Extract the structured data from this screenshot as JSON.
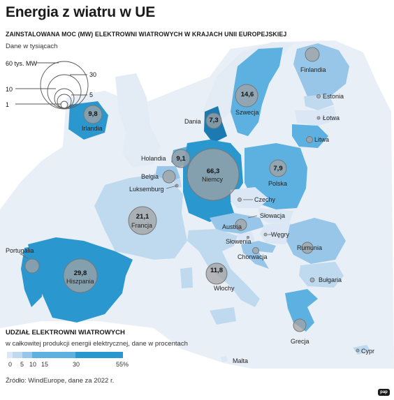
{
  "title": "Energia z wiatru w UE",
  "subtitle": "ZAINSTALOWANA MOC (MW) ELEKTROWNI WIATROWYCH W KRAJACH UNII EUROPEJSKIEJ",
  "unit_note": "Dane w tysiącach",
  "size_legend": {
    "top_label": "60 tys. MW",
    "labels": [
      "30",
      "10",
      "5",
      "1"
    ]
  },
  "countries": [
    {
      "name": "Finlandia",
      "capacity_label": "",
      "capacity_thousand_mw": 5.7,
      "share_pct": 15
    },
    {
      "name": "Estonia",
      "capacity_label": "",
      "capacity_thousand_mw": 0.3,
      "share_pct": 8
    },
    {
      "name": "Łotwa",
      "capacity_label": "",
      "capacity_thousand_mw": 0.1,
      "share_pct": 3
    },
    {
      "name": "Litwa",
      "capacity_label": "",
      "capacity_thousand_mw": 1.3,
      "share_pct": 20
    },
    {
      "name": "Szwecja",
      "capacity_label": "14,6",
      "capacity_thousand_mw": 14.6,
      "share_pct": 20
    },
    {
      "name": "Dania",
      "capacity_label": "7,3",
      "capacity_thousand_mw": 7.3,
      "share_pct": 55
    },
    {
      "name": "Irlandia",
      "capacity_label": "9,8",
      "capacity_thousand_mw": 9.8,
      "share_pct": 34
    },
    {
      "name": "Holandia",
      "capacity_label": "9,1",
      "capacity_thousand_mw": 9.1,
      "share_pct": 18
    },
    {
      "name": "Belgia",
      "capacity_label": "",
      "capacity_thousand_mw": 5.0,
      "share_pct": 12
    },
    {
      "name": "Luksemburg",
      "capacity_label": "",
      "capacity_thousand_mw": 0.2,
      "share_pct": 9
    },
    {
      "name": "Niemcy",
      "capacity_label": "66,3",
      "capacity_thousand_mw": 66.3,
      "share_pct": 26
    },
    {
      "name": "Polska",
      "capacity_label": "7,9",
      "capacity_thousand_mw": 7.9,
      "share_pct": 11
    },
    {
      "name": "Czechy",
      "capacity_label": "",
      "capacity_thousand_mw": 0.3,
      "share_pct": 1
    },
    {
      "name": "Słowacja",
      "capacity_label": "",
      "capacity_thousand_mw": 0.0,
      "share_pct": 0
    },
    {
      "name": "Austria",
      "capacity_label": "",
      "capacity_thousand_mw": 3.6,
      "share_pct": 12
    },
    {
      "name": "Węgry",
      "capacity_label": "",
      "capacity_thousand_mw": 0.3,
      "share_pct": 2
    },
    {
      "name": "Słowenia",
      "capacity_label": "",
      "capacity_thousand_mw": 0.0,
      "share_pct": 0
    },
    {
      "name": "Chorwacja",
      "capacity_label": "",
      "capacity_thousand_mw": 1.0,
      "share_pct": 13
    },
    {
      "name": "Rumunia",
      "capacity_label": "",
      "capacity_thousand_mw": 3.0,
      "share_pct": 12
    },
    {
      "name": "Bułgaria",
      "capacity_label": "",
      "capacity_thousand_mw": 0.7,
      "share_pct": 4
    },
    {
      "name": "Grecja",
      "capacity_label": "",
      "capacity_thousand_mw": 4.7,
      "share_pct": 20
    },
    {
      "name": "Cypr",
      "capacity_label": "",
      "capacity_thousand_mw": 0.2,
      "share_pct": 4
    },
    {
      "name": "Malta",
      "capacity_label": "",
      "capacity_thousand_mw": 0.0,
      "share_pct": 0
    },
    {
      "name": "Włochy",
      "capacity_label": "11,8",
      "capacity_thousand_mw": 11.8,
      "share_pct": 7
    },
    {
      "name": "Francja",
      "capacity_label": "21,1",
      "capacity_thousand_mw": 21.1,
      "share_pct": 8
    },
    {
      "name": "Hiszpania",
      "capacity_label": "29,8",
      "capacity_thousand_mw": 29.8,
      "share_pct": 22
    },
    {
      "name": "Portugalia",
      "capacity_label": "",
      "capacity_thousand_mw": 5.6,
      "share_pct": 26
    }
  ],
  "share_legend": {
    "title": "UDZIAŁ ELEKTROWNI WIATROWYCH",
    "subtitle": "w całkowitej produkcji energii elektrycznej, dane w procentach",
    "ticks": [
      "0",
      "5",
      "10",
      "15",
      "30",
      "55%"
    ],
    "colors": [
      "#dbe7f4",
      "#bfd9ef",
      "#97c6e8",
      "#5db1e0",
      "#2a97cf",
      "#1c7ab3"
    ]
  },
  "source": "Źródło: WindEurope, dane za 2022 r.",
  "logo": "pap"
}
